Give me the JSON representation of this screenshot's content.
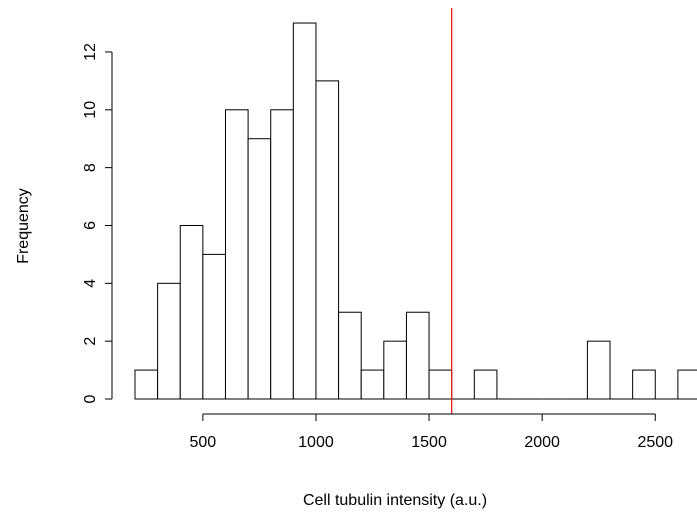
{
  "chart_data": {
    "type": "histogram",
    "title": "",
    "xlabel": "Cell tubulin intensity (a.u.)",
    "ylabel": "Frequency",
    "bin_width": 100,
    "bins": [
      {
        "start": 200,
        "end": 300,
        "count": 1
      },
      {
        "start": 300,
        "end": 400,
        "count": 4
      },
      {
        "start": 400,
        "end": 500,
        "count": 6
      },
      {
        "start": 500,
        "end": 600,
        "count": 5
      },
      {
        "start": 600,
        "end": 700,
        "count": 10
      },
      {
        "start": 700,
        "end": 800,
        "count": 9
      },
      {
        "start": 800,
        "end": 900,
        "count": 10
      },
      {
        "start": 900,
        "end": 1000,
        "count": 13
      },
      {
        "start": 1000,
        "end": 1100,
        "count": 11
      },
      {
        "start": 1100,
        "end": 1200,
        "count": 3
      },
      {
        "start": 1200,
        "end": 1300,
        "count": 1
      },
      {
        "start": 1300,
        "end": 1400,
        "count": 2
      },
      {
        "start": 1400,
        "end": 1500,
        "count": 3
      },
      {
        "start": 1500,
        "end": 1600,
        "count": 1
      },
      {
        "start": 1600,
        "end": 1700,
        "count": 0
      },
      {
        "start": 1700,
        "end": 1800,
        "count": 1
      },
      {
        "start": 1800,
        "end": 1900,
        "count": 0
      },
      {
        "start": 1900,
        "end": 2000,
        "count": 0
      },
      {
        "start": 2000,
        "end": 2100,
        "count": 0
      },
      {
        "start": 2100,
        "end": 2200,
        "count": 0
      },
      {
        "start": 2200,
        "end": 2300,
        "count": 2
      },
      {
        "start": 2300,
        "end": 2400,
        "count": 0
      },
      {
        "start": 2400,
        "end": 2500,
        "count": 1
      },
      {
        "start": 2500,
        "end": 2600,
        "count": 0
      },
      {
        "start": 2600,
        "end": 2700,
        "count": 1
      }
    ],
    "xticks": [
      500,
      1000,
      1500,
      2000,
      2500
    ],
    "xtick_labels": [
      "500",
      "1000",
      "1500",
      "2000",
      "2500"
    ],
    "yticks": [
      0,
      2,
      4,
      6,
      8,
      10,
      12
    ],
    "ytick_labels": [
      "0",
      "2",
      "4",
      "6",
      "8",
      "10",
      "12"
    ],
    "ylim": [
      0,
      13
    ],
    "reference_line": {
      "x": 1600,
      "color": "#e41a1c"
    },
    "grid": false,
    "bar_fill": "#ffffff",
    "bar_stroke": "#000000"
  }
}
